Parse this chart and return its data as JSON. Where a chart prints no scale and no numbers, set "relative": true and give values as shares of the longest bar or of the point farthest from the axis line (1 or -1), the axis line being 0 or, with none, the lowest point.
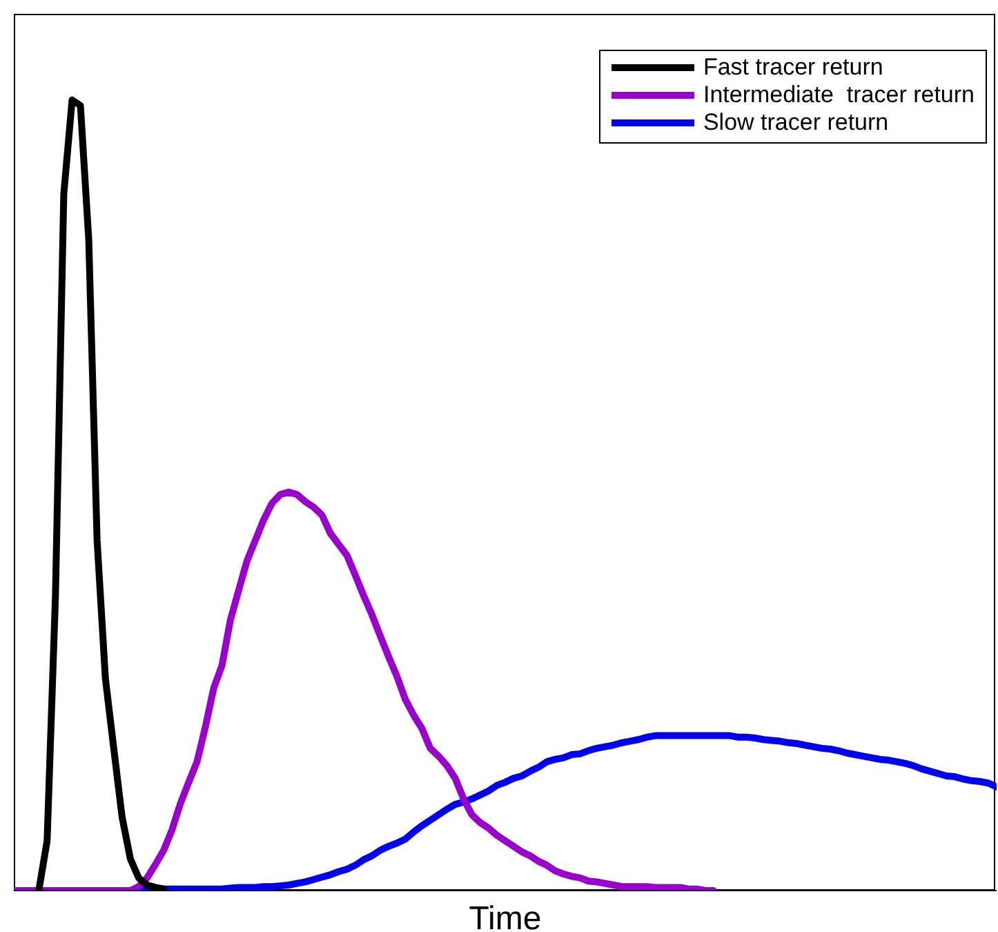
{
  "chart_data": {
    "type": "line",
    "relative": true,
    "xlabel": "Time",
    "legend": "top right",
    "grid": false,
    "marker": "none",
    "line_style": "solid",
    "categories": [
      null,
      null,
      null,
      null,
      null,
      null,
      null,
      null,
      null,
      null,
      null,
      null,
      null,
      null,
      null,
      null,
      null,
      null,
      null,
      null,
      null,
      null,
      null,
      null,
      null,
      null,
      null,
      null,
      null,
      null,
      null,
      null,
      null,
      null,
      null,
      null,
      null,
      null,
      null,
      null,
      null,
      null,
      null,
      null,
      null,
      null,
      null,
      null,
      null,
      null,
      null,
      null,
      null,
      null,
      null,
      null,
      null,
      null,
      null,
      null,
      null,
      null,
      null,
      null,
      null,
      null,
      null,
      null,
      null,
      null,
      null,
      null,
      null,
      null,
      null,
      null,
      null,
      null,
      null,
      null,
      null,
      null,
      null,
      null,
      null,
      null,
      null,
      null,
      null,
      null,
      null,
      null,
      null,
      null,
      null,
      null,
      null,
      null,
      null,
      null,
      null,
      null,
      null,
      null,
      null,
      null,
      null,
      null,
      null,
      null,
      null,
      null,
      null,
      null,
      null,
      null,
      null,
      null,
      null
    ],
    "series": [
      {
        "name": "Fast tracer return",
        "color": "#000000",
        "values": [
          null,
          null,
          null,
          0,
          0.063,
          0.373,
          0.881,
          1,
          0.993,
          0.823,
          0.443,
          0.268,
          0.18,
          0.093,
          0.04,
          0.016,
          0.007,
          0.004,
          0.002,
          null,
          null,
          null,
          null,
          null,
          null,
          null,
          null,
          null,
          null,
          null,
          null,
          null,
          null,
          null,
          null,
          null,
          null,
          null,
          null,
          null,
          null,
          null,
          null,
          null,
          null,
          null,
          null,
          null,
          null,
          null,
          null,
          null,
          null,
          null,
          null,
          null,
          null,
          null,
          null,
          null,
          null,
          null,
          null,
          null,
          null,
          null,
          null,
          null,
          null,
          null,
          null,
          null,
          null,
          null,
          null,
          null,
          null,
          null,
          null,
          null,
          null,
          null,
          null,
          null,
          null,
          null,
          null,
          null,
          null,
          null,
          null,
          null,
          null,
          null,
          null,
          null,
          null,
          null,
          null,
          null,
          null,
          null,
          null,
          null,
          null,
          null,
          null,
          null,
          null,
          null,
          null,
          null,
          null,
          null,
          null,
          null,
          null,
          null,
          null
        ]
      },
      {
        "name": "Intermediate  tracer return",
        "color": "#9900cc",
        "values": [
          0,
          0,
          0,
          0,
          0,
          0,
          0,
          0,
          0,
          0,
          0,
          0,
          0,
          0,
          0,
          0.005,
          0.016,
          0.033,
          0.051,
          0.077,
          0.11,
          0.137,
          0.163,
          0.207,
          0.256,
          0.285,
          0.342,
          0.38,
          0.417,
          0.443,
          0.469,
          0.49,
          0.501,
          0.504,
          0.501,
          0.492,
          0.485,
          0.475,
          0.452,
          0.438,
          0.424,
          0.399,
          0.373,
          0.349,
          0.322,
          0.296,
          0.271,
          0.242,
          0.222,
          0.205,
          0.18,
          0.17,
          0.158,
          0.142,
          0.116,
          0.096,
          0.086,
          0.079,
          0.07,
          0.063,
          0.056,
          0.049,
          0.044,
          0.037,
          0.032,
          0.025,
          0.021,
          0.018,
          0.016,
          0.012,
          0.011,
          0.009,
          0.007,
          0.005,
          0.005,
          0.005,
          0.005,
          0.004,
          0.004,
          0.004,
          0.004,
          0.002,
          0.002,
          0,
          0,
          null,
          null,
          null,
          null,
          null,
          null,
          null,
          null,
          null,
          null,
          null,
          null,
          null,
          null,
          null,
          null,
          null,
          null,
          null,
          null,
          null,
          null,
          null,
          null,
          null,
          null,
          null,
          null,
          null,
          null,
          null,
          null,
          null,
          null
        ]
      },
      {
        "name": "Slow tracer return",
        "color": "#0000ee",
        "values": [
          null,
          null,
          null,
          null,
          null,
          null,
          null,
          null,
          null,
          null,
          null,
          null,
          null,
          null,
          null,
          0.002,
          0.002,
          0.002,
          0.002,
          0.002,
          0.002,
          0.002,
          0.002,
          0.002,
          0.002,
          0.002,
          0.003,
          0.004,
          0.004,
          0.004,
          0.005,
          0.005,
          0.006,
          0.007,
          0.009,
          0.011,
          0.014,
          0.017,
          0.02,
          0.024,
          0.027,
          0.032,
          0.039,
          0.044,
          0.051,
          0.056,
          0.06,
          0.065,
          0.074,
          0.082,
          0.089,
          0.096,
          0.103,
          0.109,
          0.112,
          0.116,
          0.121,
          0.126,
          0.133,
          0.137,
          0.142,
          0.145,
          0.151,
          0.156,
          0.163,
          0.166,
          0.168,
          0.172,
          0.173,
          0.177,
          0.18,
          0.182,
          0.184,
          0.187,
          0.189,
          0.191,
          0.194,
          0.196,
          0.196,
          0.196,
          0.196,
          0.196,
          0.196,
          0.196,
          0.196,
          0.196,
          0.196,
          0.194,
          0.194,
          0.193,
          0.191,
          0.19,
          0.189,
          0.187,
          0.186,
          0.184,
          0.182,
          0.18,
          0.179,
          0.177,
          0.174,
          0.172,
          0.17,
          0.168,
          0.166,
          0.165,
          0.163,
          0.161,
          0.158,
          0.154,
          0.151,
          0.148,
          0.145,
          0.144,
          0.141,
          0.139,
          0.138,
          0.136,
          0.131
        ]
      }
    ]
  }
}
